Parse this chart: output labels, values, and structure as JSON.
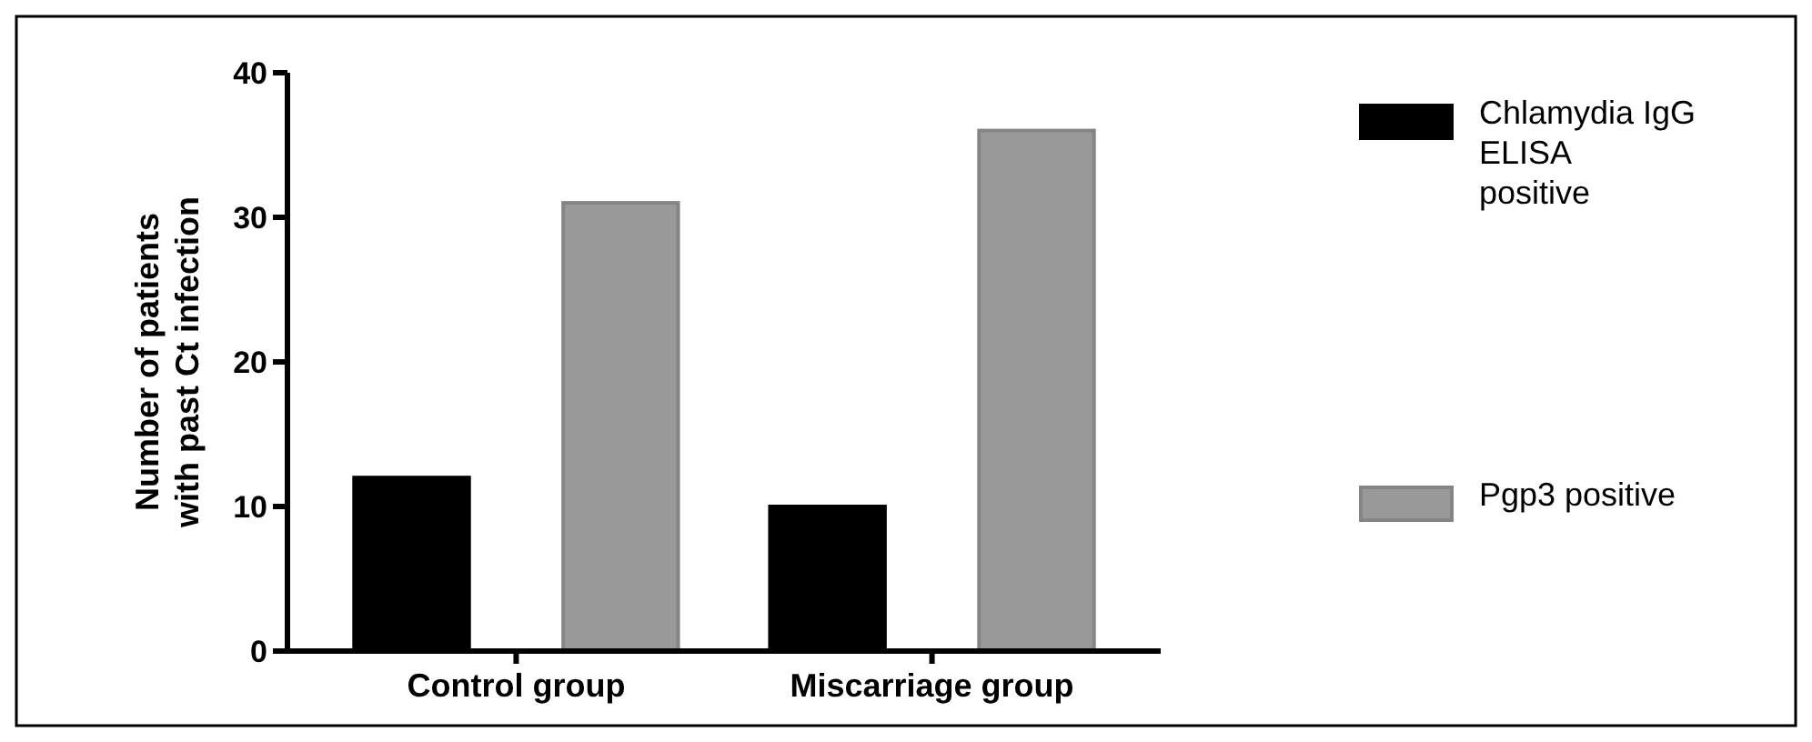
{
  "chart_data": {
    "type": "bar",
    "ylabel": "Number of patients with past Ct infection",
    "categories": [
      "Control group",
      "Miscarriage group"
    ],
    "series": [
      {
        "name": "Chlamydia IgG ELISA positive",
        "color": "#000000",
        "values": [
          12,
          10
        ]
      },
      {
        "name": "Pgp3 positive",
        "color": "#999999",
        "values": [
          31,
          36
        ]
      }
    ],
    "ylim": [
      0,
      40
    ],
    "yticks": [
      0,
      10,
      20,
      30,
      40
    ],
    "grid": false,
    "legend": "right"
  }
}
